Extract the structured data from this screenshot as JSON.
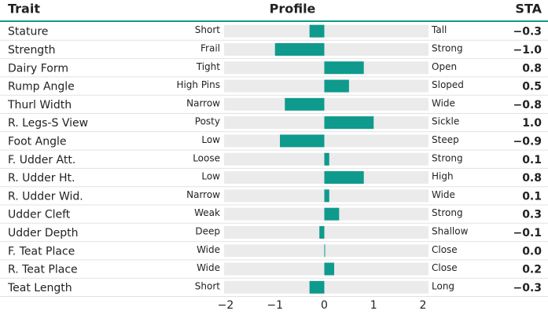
{
  "chart_data": {
    "type": "bar",
    "headers": [
      "Trait",
      "Profile",
      "STA"
    ],
    "categories": [
      "Stature",
      "Strength",
      "Dairy Form",
      "Rump Angle",
      "Thurl Width",
      "R. Legs-S View",
      "Foot Angle",
      "F. Udder Att.",
      "R. Udder Ht.",
      "R. Udder Wid.",
      "Udder Cleft",
      "Udder Depth",
      "F. Teat Place",
      "R. Teat Place",
      "Teat Length"
    ],
    "low_labels": [
      "Short",
      "Frail",
      "Tight",
      "High Pins",
      "Narrow",
      "Posty",
      "Low",
      "Loose",
      "Low",
      "Narrow",
      "Weak",
      "Deep",
      "Wide",
      "Wide",
      "Short"
    ],
    "high_labels": [
      "Tall",
      "Strong",
      "Open",
      "Sloped",
      "Wide",
      "Sickle",
      "Steep",
      "Strong",
      "High",
      "Wide",
      "Strong",
      "Shallow",
      "Close",
      "Close",
      "Long"
    ],
    "values": [
      -0.3,
      -1.0,
      0.8,
      0.5,
      -0.8,
      1.0,
      -0.9,
      0.1,
      0.8,
      0.1,
      0.3,
      -0.1,
      0.0,
      0.2,
      -0.3
    ],
    "value_labels": [
      "−0.3",
      "−1.0",
      "0.8",
      "0.5",
      "−0.8",
      "1.0",
      "−0.9",
      "0.1",
      "0.8",
      "0.1",
      "0.3",
      "−0.1",
      "0.0",
      "0.2",
      "−0.3"
    ],
    "color": "#0e9a8c",
    "xlim": [
      -2,
      2
    ],
    "xticks": [
      {
        "value": -2,
        "label": "−2"
      },
      {
        "value": -1,
        "label": "−1"
      },
      0,
      1,
      2
    ]
  }
}
